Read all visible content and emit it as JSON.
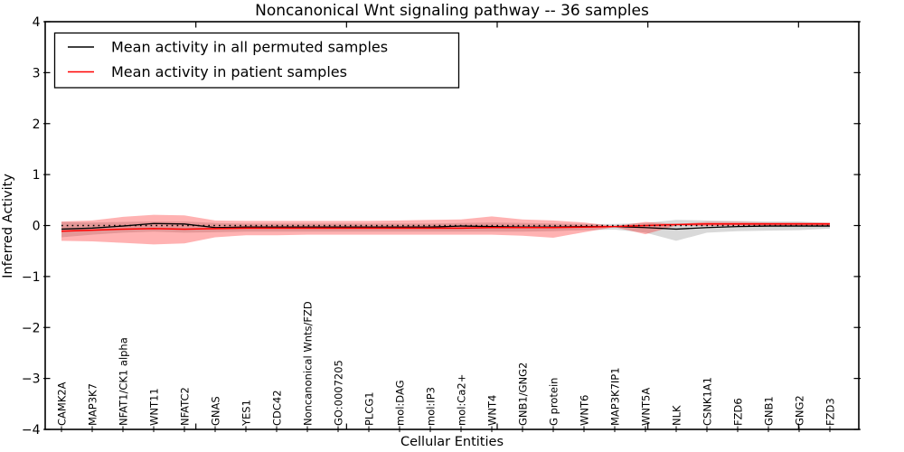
{
  "figure": {
    "background": "#ffffff",
    "title": "Noncanonical Wnt signaling pathway -- 36 samples"
  },
  "legend": {
    "position": "upper left",
    "entries": [
      {
        "label": "Mean activity in all permuted samples",
        "color": "#000000"
      },
      {
        "label": "Mean activity in patient samples",
        "color": "#ff0000"
      }
    ]
  },
  "chart_data": {
    "type": "line",
    "title": "Noncanonical Wnt signaling pathway -- 36 samples",
    "sample_count": 36,
    "xlabel": "Cellular Entities",
    "ylabel": "Inferred Activity",
    "ylim": [
      -4,
      4
    ],
    "yticks": [
      -4,
      -3,
      -2,
      -1,
      0,
      1,
      2,
      3,
      4
    ],
    "ytick_labels": [
      "−4",
      "−3",
      "−2",
      "−1",
      "0",
      "1",
      "2",
      "3",
      "4"
    ],
    "grid": false,
    "legend_position": "upper left",
    "categories": [
      "CAMK2A",
      "MAP3K7",
      "NFAT1/CK1 alpha",
      "WNT11",
      "NFATC2",
      "GNAS",
      "YES1",
      "CDC42",
      "Noncanonical Wnts/FZD",
      "GO:0007205",
      "PLCG1",
      "mol:DAG",
      "mol:IP3",
      "mol:Ca2+",
      "WNT4",
      "GNB1/GNG2",
      "G protein",
      "WNT6",
      "MAP3K7IP1",
      "WNT5A",
      "NLK",
      "CSNK1A1",
      "FZD6",
      "GNB1",
      "GNG2",
      "FZD3"
    ],
    "series": [
      {
        "name": "mean-permuted",
        "label": "Mean activity in all permuted samples",
        "color": "#000000",
        "style": "solid",
        "width": 1.3,
        "values": [
          -0.07,
          -0.05,
          -0.01,
          0.04,
          0.03,
          -0.04,
          -0.03,
          -0.03,
          -0.03,
          -0.03,
          -0.03,
          -0.03,
          -0.03,
          -0.01,
          -0.02,
          -0.03,
          -0.03,
          -0.02,
          -0.02,
          -0.04,
          -0.07,
          -0.04,
          -0.02,
          -0.01,
          -0.01,
          -0.01
        ]
      },
      {
        "name": "mean-patient",
        "label": "Mean activity in patient samples",
        "color": "#ff0000",
        "style": "solid",
        "width": 1.5,
        "values": [
          -0.11,
          -0.09,
          -0.07,
          -0.06,
          -0.07,
          -0.06,
          -0.05,
          -0.05,
          -0.05,
          -0.05,
          -0.05,
          -0.05,
          -0.05,
          -0.05,
          -0.04,
          -0.04,
          -0.04,
          -0.03,
          -0.02,
          0.0,
          0.02,
          0.03,
          0.03,
          0.03,
          0.03,
          0.03
        ]
      },
      {
        "name": "zero-reference",
        "label": "",
        "color": "#000000",
        "style": "dotted",
        "width": 1.6,
        "values": [
          0,
          0,
          0,
          0,
          0,
          0,
          0,
          0,
          0,
          0,
          0,
          0,
          0,
          0,
          0,
          0,
          0,
          0,
          0,
          0,
          0,
          0,
          0,
          0,
          0,
          0
        ]
      }
    ],
    "bands": [
      {
        "name": "permuted-std-band",
        "color": "rgba(0,0,0,0.15)",
        "upper": [
          0.07,
          0.06,
          0.07,
          0.08,
          0.08,
          0.05,
          0.04,
          0.04,
          0.04,
          0.04,
          0.04,
          0.04,
          0.04,
          0.05,
          0.06,
          0.05,
          0.04,
          0.03,
          0.03,
          0.05,
          0.11,
          0.1,
          0.09,
          0.08,
          0.08,
          0.05
        ],
        "lower": [
          -0.23,
          -0.18,
          -0.14,
          -0.12,
          -0.14,
          -0.13,
          -0.12,
          -0.12,
          -0.12,
          -0.12,
          -0.12,
          -0.12,
          -0.12,
          -0.12,
          -0.12,
          -0.12,
          -0.11,
          -0.09,
          -0.08,
          -0.14,
          -0.3,
          -0.14,
          -0.11,
          -0.1,
          -0.09,
          -0.06
        ]
      },
      {
        "name": "patient-std-band",
        "color": "rgba(255,0,0,0.30)",
        "upper": [
          0.08,
          0.1,
          0.17,
          0.21,
          0.2,
          0.1,
          0.09,
          0.09,
          0.09,
          0.09,
          0.09,
          0.1,
          0.11,
          0.12,
          0.18,
          0.12,
          0.1,
          0.06,
          -0.01,
          0.07,
          0.03,
          0.07,
          0.07,
          0.06,
          0.06,
          0.06
        ],
        "lower": [
          -0.3,
          -0.31,
          -0.34,
          -0.37,
          -0.35,
          -0.23,
          -0.19,
          -0.19,
          -0.18,
          -0.18,
          -0.18,
          -0.18,
          -0.18,
          -0.18,
          -0.18,
          -0.2,
          -0.24,
          -0.13,
          -0.03,
          -0.17,
          0.0,
          -0.01,
          0.0,
          0.0,
          0.0,
          0.0
        ]
      }
    ],
    "xticks_major": [
      5,
      10,
      15,
      20,
      25
    ]
  }
}
